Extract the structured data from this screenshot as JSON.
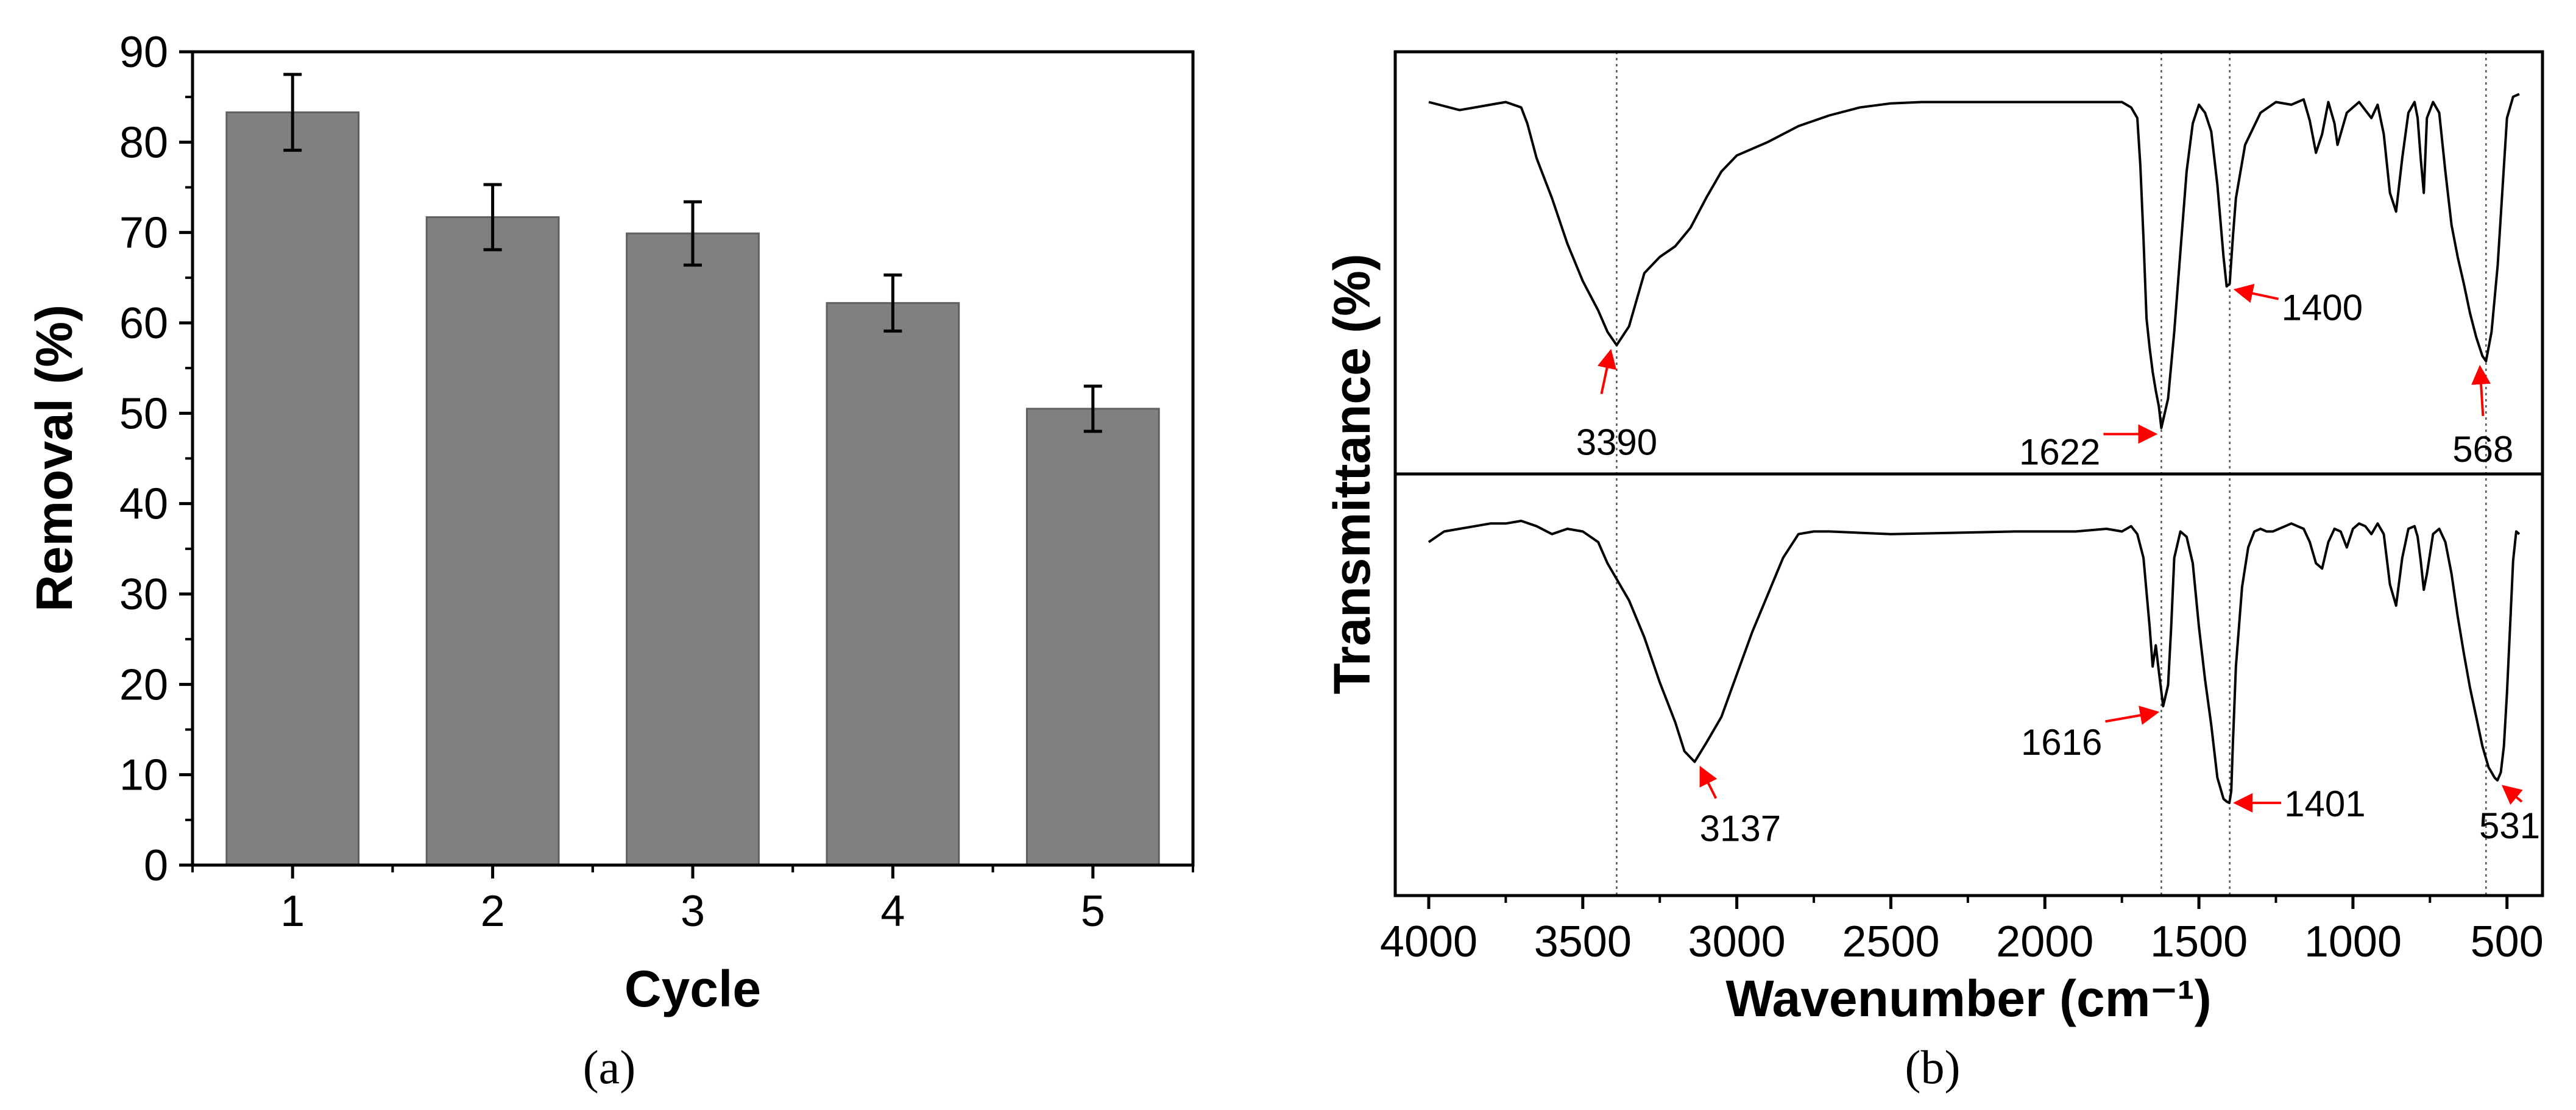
{
  "chart_data": [
    {
      "type": "bar",
      "panel_label": "(a)",
      "title": "",
      "xlabel": "Cycle",
      "ylabel": "Removal (%)",
      "categories": [
        "1",
        "2",
        "3",
        "4",
        "5"
      ],
      "values": [
        83.3,
        71.7,
        69.9,
        62.2,
        50.5
      ],
      "errors": [
        4.2,
        3.6,
        3.5,
        3.1,
        2.5
      ],
      "ylim": [
        0,
        90
      ],
      "yticks": [
        "0",
        "10",
        "20",
        "30",
        "40",
        "50",
        "60",
        "70",
        "80",
        "90"
      ],
      "bar_color": "#808080"
    },
    {
      "type": "line",
      "panel_label": "(b)",
      "title": "",
      "xlabel": "Wavenumber (cm⁻¹)",
      "ylabel": "Transmittance (%)",
      "xlim": [
        4000,
        450
      ],
      "xticks": [
        "4000",
        "3500",
        "3000",
        "2500",
        "2000",
        "1500",
        "1000",
        "500"
      ],
      "series": [
        {
          "name": "top spectrum",
          "x": [
            4000,
            3900,
            3800,
            3750,
            3700,
            3680,
            3650,
            3600,
            3550,
            3500,
            3450,
            3420,
            3390,
            3350,
            3300,
            3250,
            3200,
            3150,
            3100,
            3050,
            3000,
            2900,
            2800,
            2700,
            2600,
            2500,
            2400,
            2200,
            2000,
            1800,
            1750,
            1720,
            1700,
            1690,
            1680,
            1670,
            1660,
            1650,
            1640,
            1630,
            1622,
            1600,
            1580,
            1560,
            1540,
            1520,
            1500,
            1480,
            1460,
            1440,
            1420,
            1410,
            1400,
            1390,
            1380,
            1350,
            1300,
            1250,
            1200,
            1180,
            1160,
            1140,
            1120,
            1100,
            1080,
            1060,
            1050,
            1020,
            1000,
            980,
            960,
            940,
            920,
            900,
            880,
            860,
            840,
            820,
            800,
            790,
            780,
            770,
            760,
            740,
            720,
            700,
            680,
            660,
            640,
            620,
            600,
            580,
            568,
            550,
            530,
            510,
            500,
            480,
            460
          ],
          "y": [
            9.6,
            9.3,
            9.5,
            9.6,
            9.4,
            8.8,
            7.5,
            6.0,
            4.3,
            2.9,
            1.8,
            1.0,
            0.5,
            1.2,
            3.2,
            3.8,
            4.2,
            4.9,
            6.0,
            7.0,
            7.6,
            8.1,
            8.7,
            9.1,
            9.4,
            9.55,
            9.6,
            9.6,
            9.6,
            9.6,
            9.6,
            9.4,
            9.0,
            7.2,
            4.5,
            1.5,
            0.4,
            -0.5,
            -1.2,
            -1.8,
            -2.6,
            -1.5,
            1.0,
            4.0,
            7.0,
            8.8,
            9.5,
            9.2,
            8.5,
            6.5,
            3.8,
            2.7,
            2.8,
            4.5,
            6.0,
            8.0,
            9.2,
            9.6,
            9.5,
            9.6,
            9.7,
            8.9,
            7.7,
            8.4,
            9.6,
            8.8,
            8.0,
            9.2,
            9.4,
            9.6,
            9.3,
            9.0,
            9.5,
            8.4,
            6.2,
            5.5,
            7.5,
            9.2,
            9.6,
            9.0,
            7.5,
            6.2,
            9.0,
            9.6,
            9.2,
            7.0,
            5.0,
            3.8,
            2.8,
            1.7,
            0.8,
            0.1,
            -0.1,
            1.0,
            3.5,
            7.2,
            9.0,
            9.8,
            9.9
          ]
        },
        {
          "name": "bottom spectrum",
          "x": [
            4000,
            3950,
            3900,
            3850,
            3800,
            3750,
            3700,
            3650,
            3600,
            3550,
            3500,
            3450,
            3420,
            3400,
            3380,
            3350,
            3300,
            3250,
            3200,
            3170,
            3137,
            3100,
            3050,
            3000,
            2950,
            2900,
            2850,
            2800,
            2750,
            2700,
            2500,
            2300,
            2100,
            1900,
            1800,
            1750,
            1720,
            1700,
            1680,
            1660,
            1650,
            1640,
            1630,
            1616,
            1600,
            1590,
            1580,
            1560,
            1540,
            1520,
            1500,
            1480,
            1460,
            1440,
            1420,
            1410,
            1401,
            1395,
            1390,
            1380,
            1360,
            1340,
            1320,
            1300,
            1280,
            1260,
            1240,
            1220,
            1200,
            1180,
            1160,
            1140,
            1120,
            1100,
            1080,
            1060,
            1040,
            1020,
            1000,
            980,
            960,
            940,
            920,
            900,
            880,
            860,
            840,
            820,
            800,
            790,
            780,
            770,
            760,
            740,
            720,
            700,
            680,
            660,
            640,
            620,
            600,
            580,
            560,
            540,
            531,
            520,
            510,
            500,
            490,
            480,
            470,
            460
          ],
          "y": [
            9.2,
            9.6,
            9.7,
            9.8,
            9.9,
            9.9,
            10.0,
            9.8,
            9.5,
            9.7,
            9.6,
            9.2,
            8.4,
            8.0,
            7.6,
            7.0,
            5.6,
            3.9,
            2.4,
            1.3,
            0.9,
            1.6,
            2.6,
            4.2,
            5.8,
            7.2,
            8.6,
            9.5,
            9.6,
            9.6,
            9.5,
            9.55,
            9.6,
            9.6,
            9.7,
            9.6,
            9.8,
            9.5,
            8.6,
            6.0,
            4.5,
            5.3,
            4.3,
            3.0,
            3.8,
            6.0,
            8.6,
            9.6,
            9.4,
            8.4,
            6.0,
            4.0,
            2.3,
            0.3,
            -0.5,
            -0.6,
            -0.65,
            -0.2,
            1.5,
            4.5,
            7.5,
            9.0,
            9.6,
            9.7,
            9.6,
            9.6,
            9.7,
            9.8,
            9.9,
            9.8,
            9.7,
            9.2,
            8.4,
            8.2,
            9.2,
            9.7,
            9.6,
            9.0,
            9.7,
            9.9,
            9.8,
            9.5,
            9.9,
            9.5,
            7.6,
            6.8,
            8.6,
            9.7,
            9.8,
            9.4,
            8.5,
            7.4,
            8.0,
            9.5,
            9.7,
            9.2,
            8.0,
            6.4,
            5.0,
            3.7,
            2.6,
            1.5,
            0.7,
            0.3,
            0.2,
            0.5,
            1.5,
            3.5,
            6.0,
            8.5,
            9.6,
            9.5
          ]
        }
      ],
      "reference_lines": [
        3390,
        1622,
        1400,
        568
      ],
      "annotations": [
        {
          "label": "3390",
          "x": 3390,
          "series": "top spectrum"
        },
        {
          "label": "1622",
          "x": 1622,
          "series": "top spectrum"
        },
        {
          "label": "1400",
          "x": 1400,
          "series": "top spectrum"
        },
        {
          "label": "568",
          "x": 568,
          "series": "top spectrum"
        },
        {
          "label": "3137",
          "x": 3137,
          "series": "bottom spectrum"
        },
        {
          "label": "1616",
          "x": 1616,
          "series": "bottom spectrum"
        },
        {
          "label": "1401",
          "x": 1401,
          "series": "bottom spectrum"
        },
        {
          "label": "531",
          "x": 531,
          "series": "bottom spectrum"
        }
      ],
      "annotation_color": "#ff0000"
    }
  ]
}
